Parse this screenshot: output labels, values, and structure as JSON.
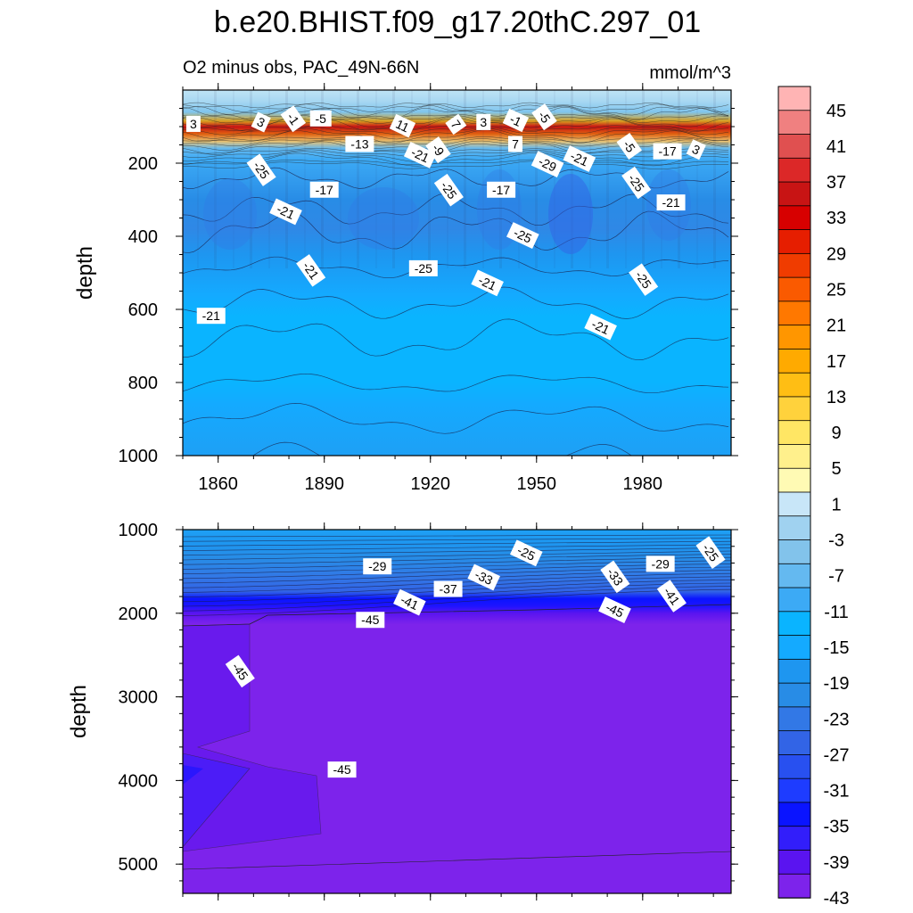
{
  "title": "b.e20.BHIST.f09_g17.20thC.297_01",
  "subtitle_left": "O2 minus obs, PAC_49N-66N",
  "subtitle_right": "mmol/m^3",
  "chart_data": [
    {
      "type": "heatmap",
      "panel": "upper",
      "ylabel": "depth",
      "xlim": [
        1850,
        2005
      ],
      "ylim": [
        0,
        1000
      ],
      "y_inverted": true,
      "xticks": [
        1860,
        1890,
        1920,
        1950,
        1980
      ],
      "xtick_labels": [
        "1860",
        "1890",
        "1920",
        "1950",
        "1980"
      ],
      "yticks": [
        200,
        400,
        600,
        800,
        1000
      ],
      "ytick_labels": [
        "200",
        "400",
        "600",
        "800",
        "1000"
      ],
      "contour_labels": [
        {
          "x": 1853,
          "y": 95,
          "text": "3"
        },
        {
          "x": 1872,
          "y": 90,
          "text": "3"
        },
        {
          "x": 1881,
          "y": 80,
          "text": "-1"
        },
        {
          "x": 1889,
          "y": 80,
          "text": "-5"
        },
        {
          "x": 1912,
          "y": 100,
          "text": "11"
        },
        {
          "x": 1927,
          "y": 95,
          "text": "7"
        },
        {
          "x": 1935,
          "y": 90,
          "text": "3"
        },
        {
          "x": 1944,
          "y": 85,
          "text": "-1"
        },
        {
          "x": 1952,
          "y": 75,
          "text": "-5"
        },
        {
          "x": 1900,
          "y": 150,
          "text": "-13"
        },
        {
          "x": 1917,
          "y": 180,
          "text": "-21"
        },
        {
          "x": 1922,
          "y": 165,
          "text": "-9"
        },
        {
          "x": 1944,
          "y": 150,
          "text": "7"
        },
        {
          "x": 1962,
          "y": 190,
          "text": "-21"
        },
        {
          "x": 1976,
          "y": 155,
          "text": "-5"
        },
        {
          "x": 1987,
          "y": 170,
          "text": "-17"
        },
        {
          "x": 1995,
          "y": 165,
          "text": "3"
        },
        {
          "x": 1872,
          "y": 220,
          "text": "-25"
        },
        {
          "x": 1890,
          "y": 275,
          "text": "-17"
        },
        {
          "x": 1879,
          "y": 335,
          "text": "-21"
        },
        {
          "x": 1925,
          "y": 275,
          "text": "-25"
        },
        {
          "x": 1940,
          "y": 275,
          "text": "-17"
        },
        {
          "x": 1953,
          "y": 205,
          "text": "-29"
        },
        {
          "x": 1978,
          "y": 255,
          "text": "-25"
        },
        {
          "x": 1988,
          "y": 310,
          "text": "-21"
        },
        {
          "x": 1946,
          "y": 400,
          "text": "-25"
        },
        {
          "x": 1886,
          "y": 495,
          "text": "-21"
        },
        {
          "x": 1918,
          "y": 490,
          "text": "-25"
        },
        {
          "x": 1936,
          "y": 530,
          "text": "-21"
        },
        {
          "x": 1980,
          "y": 520,
          "text": "-25"
        },
        {
          "x": 1858,
          "y": 620,
          "text": "-21"
        },
        {
          "x": 1968,
          "y": 650,
          "text": "-21"
        }
      ]
    },
    {
      "type": "heatmap",
      "panel": "lower",
      "ylabel": "depth",
      "xlim": [
        1850,
        2005
      ],
      "ylim": [
        1000,
        5350
      ],
      "y_inverted": true,
      "yticks": [
        1000,
        2000,
        3000,
        4000,
        5000
      ],
      "ytick_labels": [
        "1000",
        "2000",
        "3000",
        "4000",
        "5000"
      ],
      "contour_labels": [
        {
          "x": 1905,
          "y": 1450,
          "text": "-29"
        },
        {
          "x": 1947,
          "y": 1290,
          "text": "-25"
        },
        {
          "x": 1999,
          "y": 1280,
          "text": "-25"
        },
        {
          "x": 1985,
          "y": 1420,
          "text": "-29"
        },
        {
          "x": 1935,
          "y": 1580,
          "text": "-33"
        },
        {
          "x": 1972,
          "y": 1570,
          "text": "-33"
        },
        {
          "x": 1925,
          "y": 1720,
          "text": "-37"
        },
        {
          "x": 1914,
          "y": 1880,
          "text": "-41"
        },
        {
          "x": 1988,
          "y": 1800,
          "text": "-41"
        },
        {
          "x": 1903,
          "y": 2090,
          "text": "-45"
        },
        {
          "x": 1972,
          "y": 1970,
          "text": "-45"
        },
        {
          "x": 1866,
          "y": 2700,
          "text": "-45"
        },
        {
          "x": 1895,
          "y": 3880,
          "text": "-45"
        }
      ]
    }
  ],
  "colorbar": {
    "labels": [
      "45",
      "41",
      "37",
      "33",
      "29",
      "25",
      "21",
      "17",
      "13",
      "9",
      "5",
      "1",
      "-3",
      "-7",
      "-11",
      "-15",
      "-19",
      "-23",
      "-27",
      "-31",
      "-35",
      "-39",
      "-43"
    ],
    "colors": [
      "#ffb4b4",
      "#f08080",
      "#e05050",
      "#dc2828",
      "#c81414",
      "#d70000",
      "#e61e00",
      "#f03c00",
      "#fa5a00",
      "#ff7800",
      "#ff9600",
      "#ffaa00",
      "#ffbe14",
      "#ffd23c",
      "#ffe664",
      "#fff08c",
      "#fffab4",
      "#c8e6f8",
      "#a0d2f0",
      "#82c3eb",
      "#64b9f0",
      "#3caaf5",
      "#0ab4ff",
      "#14aaff",
      "#1e96f0",
      "#288ce6",
      "#3278e6",
      "#3264e6",
      "#2850f0",
      "#1e3cff",
      "#0a14ff",
      "#321efa",
      "#5a14f0",
      "#7d23eb"
    ]
  }
}
